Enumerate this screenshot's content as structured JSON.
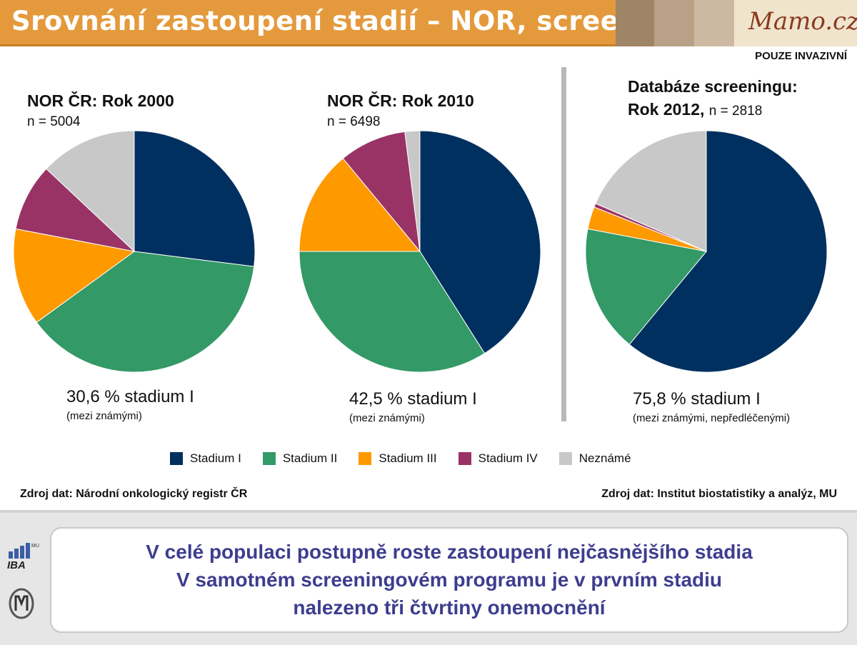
{
  "header": {
    "title": "Srovnání zastoupení stadií – NOR, screening",
    "logo_text": "Mamo.cz"
  },
  "note": "POUZE INVAZIVNÍ",
  "colors": {
    "stadium_1": "#00305f",
    "stadium_2": "#339966",
    "stadium_3": "#ff9900",
    "stadium_4": "#993366",
    "unknown": "#c8c8c8",
    "title_bar": "#e49a3c",
    "message_text": "#3d3d8f"
  },
  "chart_data": [
    {
      "type": "pie",
      "title": "NOR ČR: Rok 2000",
      "n_label": "n = 5004",
      "categories": [
        "Stadium I",
        "Stadium II",
        "Stadium III",
        "Stadium IV",
        "Neznámé"
      ],
      "values": [
        27,
        38,
        13,
        9,
        13
      ],
      "caption": "30,6 % stadium I",
      "caption_note": "(mezi známými)"
    },
    {
      "type": "pie",
      "title": "NOR ČR: Rok 2010",
      "n_label": "n = 6498",
      "categories": [
        "Stadium I",
        "Stadium II",
        "Stadium III",
        "Stadium IV",
        "Neznámé"
      ],
      "values": [
        41,
        34,
        14,
        9,
        2
      ],
      "caption": "42,5 % stadium I",
      "caption_note": "(mezi známými)"
    },
    {
      "type": "pie",
      "title_line1": "Databáze screeningu:",
      "title_line2": "Rok 2012,",
      "n_label": "n = 2818",
      "categories": [
        "Stadium I",
        "Stadium II",
        "Stadium III",
        "Stadium IV",
        "Neznámé"
      ],
      "values": [
        61,
        17,
        3,
        0.5,
        18.5
      ],
      "caption": "75,8 % stadium I",
      "caption_note": "(mezi známými, nepředléčenými)"
    }
  ],
  "legend": {
    "items": [
      "Stadium I",
      "Stadium II",
      "Stadium III",
      "Stadium IV",
      "Neznámé"
    ]
  },
  "sources": {
    "left": "Zdroj dat: Národní onkologický registr ČR",
    "right": "Zdroj dat: Institut biostatistiky a analýz, MU"
  },
  "footer": {
    "iba_text": "IBA",
    "mu_text": "MU",
    "message_lines": [
      "V celé populaci postupně roste zastoupení nejčasnějšího stadia",
      "V samotném screeningovém programu je v prvním stadiu",
      "nalezeno tři čtvrtiny onemocnění"
    ]
  }
}
